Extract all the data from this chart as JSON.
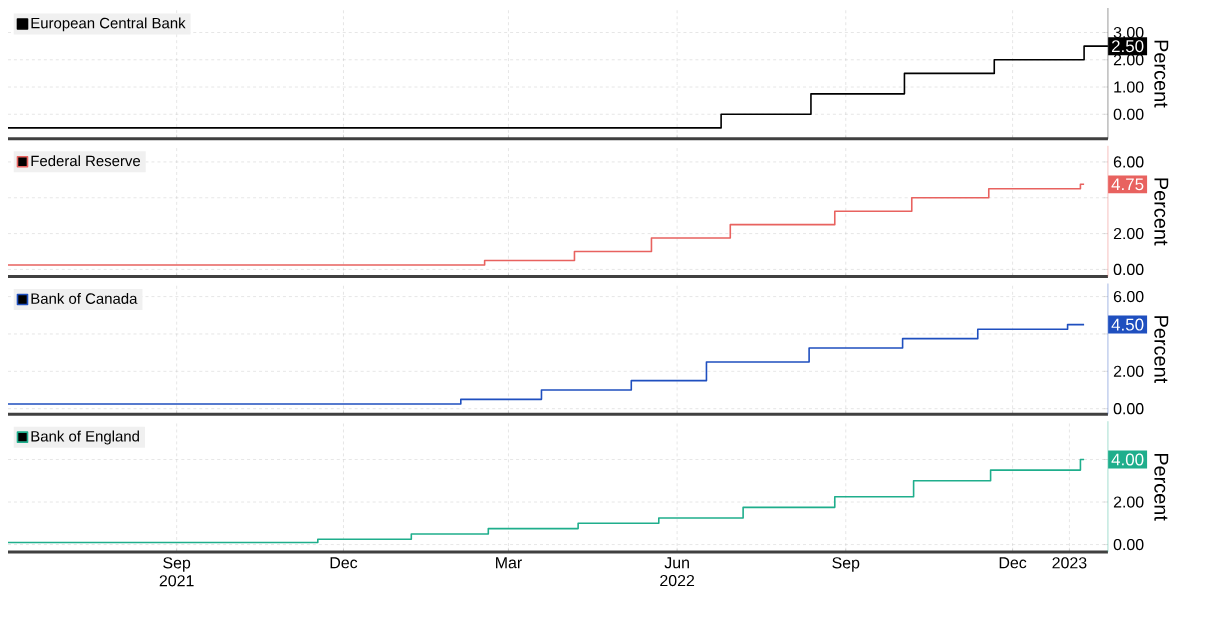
{
  "chart_data": [
    {
      "type": "step",
      "xlim": [
        "2021-06-01",
        "2023-01-22"
      ],
      "ylim": [
        -0.9,
        3.9
      ],
      "xticks": [
        {
          "value": "2021-09-01",
          "label": null
        },
        {
          "value": "2021-12-01",
          "label": null
        },
        {
          "value": "2022-03-01",
          "label": null
        },
        {
          "value": "2022-06-01",
          "label": null
        },
        {
          "value": "2022-09-01",
          "label": null
        },
        {
          "value": "2022-12-01",
          "label": null
        }
      ],
      "yticks": [
        {
          "value": 0,
          "label": "0.00"
        },
        {
          "value": 1,
          "label": "1.00"
        },
        {
          "value": 2,
          "label": "2.00"
        },
        {
          "value": 3,
          "label": "3.00"
        }
      ],
      "ylabel": "Percent",
      "grid": true,
      "legend": "top left",
      "tick_labels": "y",
      "series": [
        {
          "name": "European Central Bank",
          "color": "#000000",
          "x": [
            "2021-06-01",
            "2022-06-25",
            "2022-08-13",
            "2022-10-03",
            "2022-11-21",
            "2023-01-09",
            "2023-01-22"
          ],
          "values": [
            -0.5,
            0,
            0.75,
            1.5,
            2.0,
            2.5,
            2.5
          ]
        }
      ],
      "annotations": [
        "2.50"
      ]
    },
    {
      "type": "step",
      "xlim": [
        "2021-06-01",
        "2023-01-22"
      ],
      "ylim": [
        -0.4,
        6.9
      ],
      "xticks": [
        {
          "value": "2021-09-01",
          "label": null
        },
        {
          "value": "2021-12-01",
          "label": null
        },
        {
          "value": "2022-03-01",
          "label": null
        },
        {
          "value": "2022-06-01",
          "label": null
        },
        {
          "value": "2022-09-01",
          "label": null
        },
        {
          "value": "2022-12-01",
          "label": null
        }
      ],
      "yticks": [
        {
          "value": 0,
          "label": "0.00"
        },
        {
          "value": 2,
          "label": "2.00"
        },
        {
          "value": 4,
          "label": null
        },
        {
          "value": 6,
          "label": "6.00"
        }
      ],
      "ylabel": "Percent",
      "grid": true,
      "legend": "top left",
      "tick_labels": "y",
      "series": [
        {
          "name": "Federal Reserve",
          "color": "#e8625f",
          "x": [
            "2021-06-01",
            "2022-02-16",
            "2022-04-06",
            "2022-05-18",
            "2022-06-30",
            "2022-08-26",
            "2022-10-07",
            "2022-11-18",
            "2023-01-07",
            "2023-01-09"
          ],
          "values": [
            0.25,
            0.5,
            1.0,
            1.75,
            2.5,
            3.25,
            4.0,
            4.5,
            4.75,
            4.75
          ]
        }
      ],
      "annotations": [
        "4.75"
      ]
    },
    {
      "type": "step",
      "xlim": [
        "2021-06-01",
        "2023-01-22"
      ],
      "ylim": [
        -0.3,
        6.7
      ],
      "xticks": [
        {
          "value": "2021-09-01",
          "label": null
        },
        {
          "value": "2021-12-01",
          "label": null
        },
        {
          "value": "2022-03-01",
          "label": null
        },
        {
          "value": "2022-06-01",
          "label": null
        },
        {
          "value": "2022-09-01",
          "label": null
        },
        {
          "value": "2022-12-01",
          "label": null
        }
      ],
      "yticks": [
        {
          "value": 0,
          "label": "0.00"
        },
        {
          "value": 2,
          "label": "2.00"
        },
        {
          "value": 4,
          "label": null
        },
        {
          "value": 6,
          "label": "6.00"
        }
      ],
      "ylabel": "Percent",
      "grid": true,
      "legend": "top left",
      "tick_labels": "y",
      "series": [
        {
          "name": "Bank of Canada",
          "color": "#1f4fbf",
          "x": [
            "2021-06-01",
            "2022-02-03",
            "2022-03-19",
            "2022-05-07",
            "2022-06-17",
            "2022-08-12",
            "2022-10-02",
            "2022-11-12",
            "2022-12-31",
            "2023-01-09"
          ],
          "values": [
            0.25,
            0.5,
            1.0,
            1.5,
            2.5,
            3.25,
            3.75,
            4.25,
            4.5,
            4.5
          ]
        }
      ],
      "annotations": [
        "4.50"
      ]
    },
    {
      "type": "step",
      "xlim": [
        "2021-06-01",
        "2023-01-22"
      ],
      "ylim": [
        -0.35,
        5.8
      ],
      "xticks": [
        {
          "value": "2021-09-01",
          "label": "Sep 2021"
        },
        {
          "value": "2021-12-01",
          "label": "Dec"
        },
        {
          "value": "2022-03-01",
          "label": "Mar"
        },
        {
          "value": "2022-06-01",
          "label": "Jun 2022"
        },
        {
          "value": "2022-09-01",
          "label": "Sep"
        },
        {
          "value": "2022-12-01",
          "label": "Dec"
        },
        {
          "value": "2023-01-01",
          "label": "2023"
        }
      ],
      "yticks": [
        {
          "value": 0,
          "label": "0.00"
        },
        {
          "value": 2,
          "label": "2.00"
        },
        {
          "value": 4,
          "label": null
        }
      ],
      "ylabel": "Percent",
      "grid": true,
      "legend": "top left",
      "series": [
        {
          "name": "Bank of England",
          "color": "#1fae8c",
          "x": [
            "2021-06-01",
            "2021-11-17",
            "2022-01-07",
            "2022-02-18",
            "2022-04-08",
            "2022-05-22",
            "2022-07-07",
            "2022-08-26",
            "2022-10-08",
            "2022-11-19",
            "2023-01-07",
            "2023-01-09"
          ],
          "values": [
            0.1,
            0.25,
            0.5,
            0.75,
            1.0,
            1.25,
            1.75,
            2.25,
            3.0,
            3.5,
            4.0,
            4.0
          ]
        }
      ],
      "annotations": [
        "4.00"
      ]
    }
  ]
}
